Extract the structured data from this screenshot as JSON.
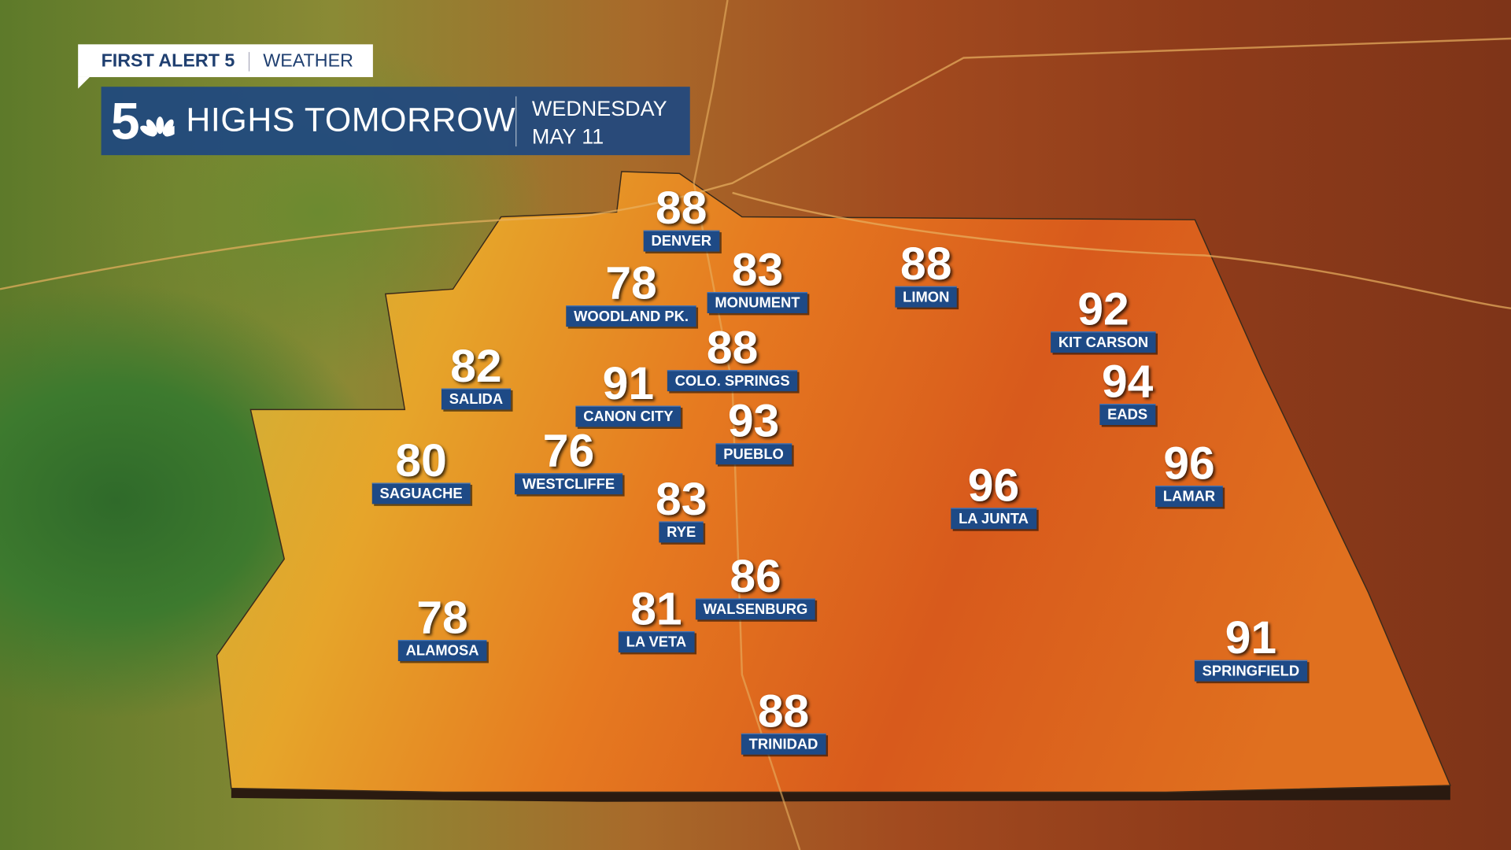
{
  "header": {
    "brand": "FIRST ALERT 5",
    "brand_suffix": "WEATHER",
    "logo": "5 NBC peacock logo",
    "title": "HIGHS TOMORROW",
    "day": "WEDNESDAY",
    "date": "MAY 11"
  },
  "colors": {
    "banner": "#1e4a86",
    "label": "#1e4a86",
    "text": "#ffffff"
  },
  "cities": [
    {
      "name": "DENVER",
      "high": "88"
    },
    {
      "name": "WOODLAND PK.",
      "high": "78"
    },
    {
      "name": "MONUMENT",
      "high": "83"
    },
    {
      "name": "LIMON",
      "high": "88"
    },
    {
      "name": "KIT CARSON",
      "high": "92"
    },
    {
      "name": "SALIDA",
      "high": "82"
    },
    {
      "name": "COLO. SPRINGS",
      "high": "88"
    },
    {
      "name": "CANON CITY",
      "high": "91"
    },
    {
      "name": "PUEBLO",
      "high": "93"
    },
    {
      "name": "EADS",
      "high": "94"
    },
    {
      "name": "SAGUACHE",
      "high": "80"
    },
    {
      "name": "WESTCLIFFE",
      "high": "76"
    },
    {
      "name": "RYE",
      "high": "83"
    },
    {
      "name": "LA JUNTA",
      "high": "96"
    },
    {
      "name": "LAMAR",
      "high": "96"
    },
    {
      "name": "WALSENBURG",
      "high": "86"
    },
    {
      "name": "LA VETA",
      "high": "81"
    },
    {
      "name": "ALAMOSA",
      "high": "78"
    },
    {
      "name": "SPRINGFIELD",
      "high": "91"
    },
    {
      "name": "TRINIDAD",
      "high": "88"
    }
  ]
}
